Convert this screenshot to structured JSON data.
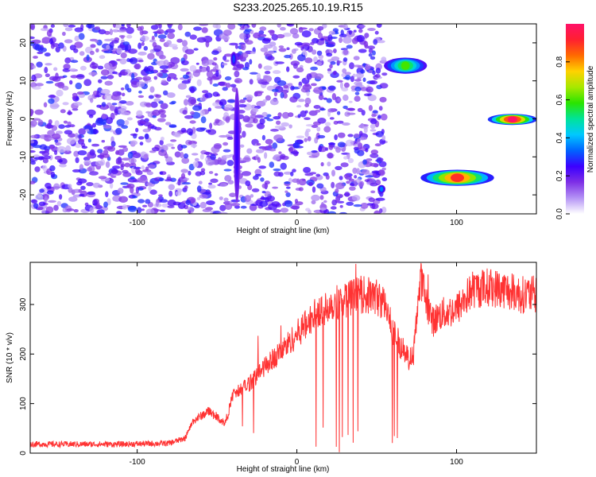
{
  "title": "S233.2025.265.10.19.R15",
  "chart_data": [
    {
      "type": "heatmap",
      "xlabel": "Height of straight line (km)",
      "ylabel": "Frequency (Hz)",
      "xlim": [
        -167,
        150
      ],
      "ylim": [
        -25,
        25
      ],
      "x_ticks": [
        "-100",
        "0",
        "100"
      ],
      "y_ticks": [
        "20",
        "10",
        "0",
        "-10",
        "-20"
      ],
      "colorbar": {
        "label": "Normalized spectral amplitude",
        "range": [
          0.0,
          1.0
        ],
        "ticks": [
          "0.0",
          "0.2",
          "0.4",
          "0.6",
          "0.8"
        ],
        "colors": [
          "#ffffff",
          "#b493f5",
          "#7e2fe6",
          "#3b00ff",
          "#0064ff",
          "#00c8ff",
          "#00e39a",
          "#2ae400",
          "#a7e800",
          "#ffd200",
          "#ff6a00",
          "#ff2030",
          "#ff1168"
        ]
      },
      "noise_region": {
        "x": [
          -167,
          55
        ],
        "y": [
          -25,
          25
        ],
        "amplitude": [
          0.05,
          0.3
        ]
      },
      "features": [
        {
          "x": [
            -41,
            -38
          ],
          "y": [
            14,
            17.5
          ],
          "amplitude": 0.3
        },
        {
          "x": [
            -39,
            -36
          ],
          "y": [
            -22,
            8
          ],
          "amplitude": 0.25
        },
        {
          "x": [
            51,
            55
          ],
          "y": [
            -19.5,
            -17.5
          ],
          "amplitude": 0.35
        },
        {
          "x": [
            55,
            81
          ],
          "y": [
            12,
            16
          ],
          "amplitude": 0.6
        },
        {
          "x": [
            78,
            123
          ],
          "y": [
            -17.5,
            -13.5
          ],
          "amplitude": 0.9
        },
        {
          "x": [
            120,
            150
          ],
          "y": [
            -1.5,
            1.2
          ],
          "amplitude": 1.0
        }
      ]
    },
    {
      "type": "line",
      "xlabel": "Height of straight line (km)",
      "ylabel": "SNR (10 * v/v)",
      "xlim": [
        -167,
        150
      ],
      "ylim": [
        0,
        385
      ],
      "x_ticks": [
        "-100",
        "0",
        "100"
      ],
      "y_ticks": [
        "0",
        "100",
        "200",
        "300"
      ],
      "color": "#ff3333",
      "x": [
        -167,
        -140,
        -110,
        -80,
        -70,
        -65,
        -55,
        -45,
        -40,
        -30,
        -20,
        -10,
        0,
        10,
        20,
        30,
        40,
        50,
        55,
        60,
        65,
        70,
        73,
        76,
        78,
        80,
        85,
        90,
        100,
        110,
        120,
        130,
        140,
        150
      ],
      "y": [
        18,
        18,
        18,
        20,
        30,
        65,
        85,
        60,
        115,
        140,
        175,
        205,
        240,
        275,
        300,
        310,
        320,
        315,
        300,
        250,
        215,
        190,
        195,
        310,
        350,
        320,
        265,
        280,
        290,
        330,
        335,
        330,
        320,
        320
      ]
    }
  ]
}
